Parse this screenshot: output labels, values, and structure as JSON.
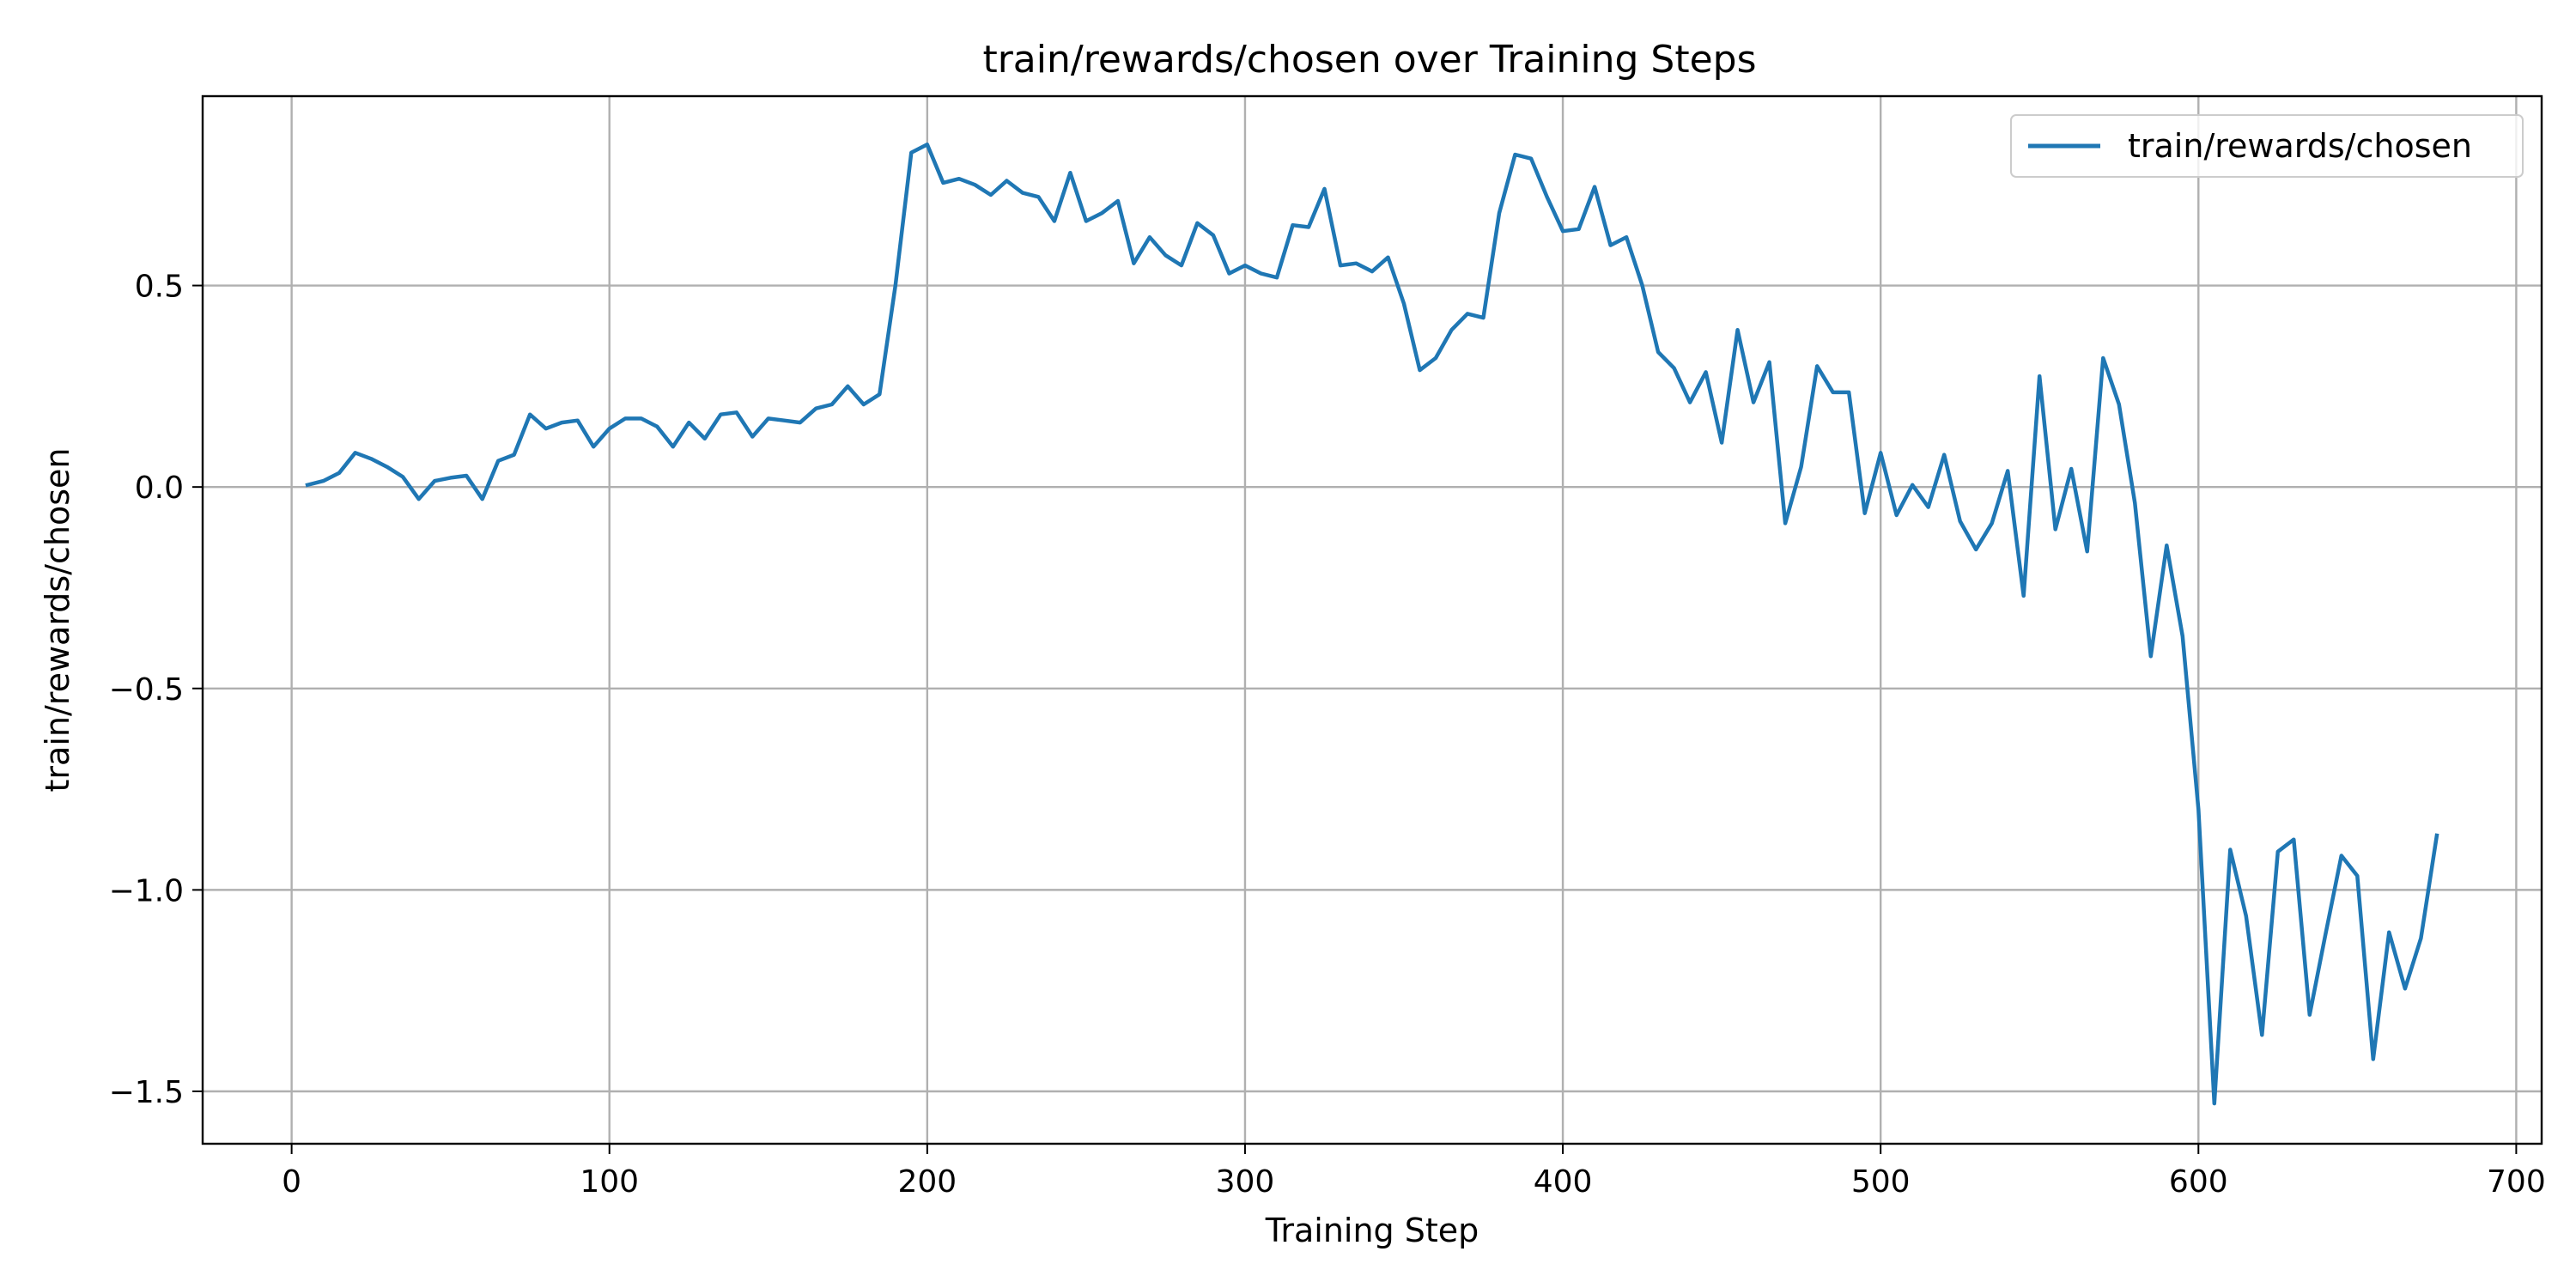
{
  "chart_data": {
    "type": "line",
    "title": "train/rewards/chosen over Training Steps",
    "xlabel": "Training Step",
    "ylabel": "train/rewards/chosen",
    "xlim": [
      -28,
      708
    ],
    "ylim": [
      -1.63,
      0.97
    ],
    "xticks": [
      0,
      100,
      200,
      300,
      400,
      500,
      600,
      700
    ],
    "yticks": [
      -1.5,
      -1.0,
      -0.5,
      0.0,
      0.5
    ],
    "xtick_labels": [
      "0",
      "100",
      "200",
      "300",
      "400",
      "500",
      "600",
      "700"
    ],
    "ytick_labels": [
      "−1.5",
      "−1.0",
      "−0.5",
      "0.0",
      "0.5"
    ],
    "grid": true,
    "legend_position": "top-right",
    "color": "#1f77b4",
    "series": [
      {
        "name": "train/rewards/chosen",
        "x": [
          5,
          10,
          15,
          20,
          25,
          30,
          35,
          40,
          45,
          50,
          55,
          60,
          65,
          70,
          75,
          80,
          85,
          90,
          95,
          100,
          105,
          110,
          115,
          120,
          125,
          130,
          135,
          140,
          145,
          150,
          155,
          160,
          165,
          170,
          175,
          180,
          185,
          190,
          195,
          200,
          205,
          210,
          215,
          220,
          225,
          230,
          235,
          240,
          245,
          250,
          255,
          260,
          265,
          270,
          275,
          280,
          285,
          290,
          295,
          300,
          305,
          310,
          315,
          320,
          325,
          330,
          335,
          340,
          345,
          350,
          355,
          360,
          365,
          370,
          375,
          380,
          385,
          390,
          395,
          400,
          405,
          410,
          415,
          420,
          425,
          430,
          435,
          440,
          445,
          450,
          455,
          460,
          465,
          470,
          475,
          480,
          485,
          490,
          495,
          500,
          505,
          510,
          515,
          520,
          525,
          530,
          535,
          540,
          545,
          550,
          555,
          560,
          565,
          570,
          575,
          580,
          585,
          590,
          595,
          600,
          605,
          610,
          615,
          620,
          625,
          630,
          635,
          640,
          645,
          650,
          655,
          660,
          665,
          670,
          675
        ],
        "values": [
          0.005,
          0.015,
          0.035,
          0.085,
          0.07,
          0.05,
          0.025,
          -0.03,
          0.015,
          0.023,
          0.028,
          -0.03,
          0.065,
          0.08,
          0.18,
          0.145,
          0.16,
          0.165,
          0.1,
          0.145,
          0.17,
          0.17,
          0.15,
          0.1,
          0.16,
          0.12,
          0.18,
          0.185,
          0.125,
          0.17,
          0.165,
          0.16,
          0.195,
          0.205,
          0.25,
          0.205,
          0.23,
          0.5,
          0.83,
          0.85,
          0.755,
          0.765,
          0.75,
          0.725,
          0.76,
          0.73,
          0.72,
          0.66,
          0.78,
          0.66,
          0.68,
          0.71,
          0.555,
          0.62,
          0.575,
          0.55,
          0.655,
          0.625,
          0.53,
          0.55,
          0.53,
          0.52,
          0.65,
          0.645,
          0.74,
          0.55,
          0.555,
          0.535,
          0.57,
          0.455,
          0.29,
          0.32,
          0.39,
          0.43,
          0.42,
          0.68,
          0.825,
          0.815,
          0.72,
          0.635,
          0.64,
          0.745,
          0.6,
          0.62,
          0.5,
          0.335,
          0.295,
          0.21,
          0.285,
          0.11,
          0.39,
          0.21,
          0.31,
          -0.09,
          0.05,
          0.3,
          0.235,
          0.235,
          -0.065,
          0.085,
          -0.07,
          0.005,
          -0.05,
          0.08,
          -0.085,
          -0.155,
          -0.09,
          0.04,
          -0.27,
          0.275,
          -0.105,
          0.045,
          -0.16,
          0.32,
          0.205,
          -0.04,
          -0.42,
          -0.145,
          -0.37,
          -0.8,
          -1.53,
          -0.9,
          -1.065,
          -1.36,
          -0.905,
          -0.875,
          -1.31,
          -1.11,
          -0.915,
          -0.965,
          -1.42,
          -1.105,
          -1.245,
          -1.12,
          -0.865
        ]
      }
    ]
  }
}
